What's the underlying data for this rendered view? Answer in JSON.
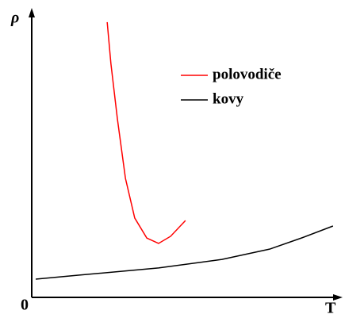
{
  "chart_data": {
    "type": "line",
    "y_label": "ρ",
    "x_label": "T",
    "origin_label": "0",
    "xlim": [
      0,
      100
    ],
    "ylim": [
      0,
      100
    ],
    "series": [
      {
        "name": "polovodiče",
        "color": "#ff0000",
        "x": [
          24.4,
          25.6,
          27.7,
          30.3,
          33.3,
          37.2,
          41.0,
          44.9,
          49.7
        ],
        "values": [
          96.4,
          81.9,
          62.5,
          41.7,
          27.8,
          20.8,
          18.9,
          21.4,
          26.9
        ]
      },
      {
        "name": "kovy",
        "color": "#000000",
        "x": [
          1.3,
          15.4,
          41.0,
          61.5,
          76.9,
          87.2,
          97.4
        ],
        "values": [
          6.4,
          7.8,
          10.3,
          13.3,
          16.9,
          20.8,
          25.0
        ]
      }
    ]
  }
}
